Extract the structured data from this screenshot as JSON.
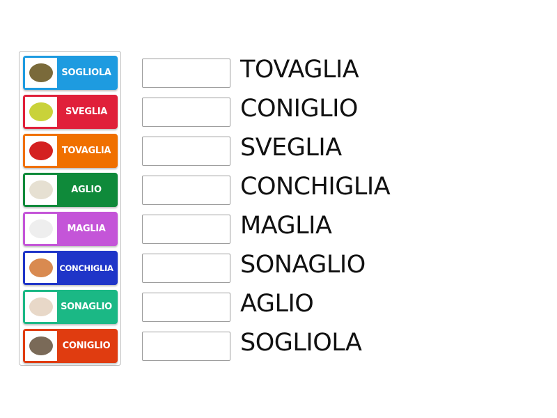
{
  "tiles": [
    {
      "label": "SOGLIOLA",
      "color": "#1e9be0",
      "image": "flatfish-image",
      "pic": "#7a6a3a"
    },
    {
      "label": "SVEGLIA",
      "color": "#e0203a",
      "image": "alarm-clock-book-image",
      "pic": "#c9d23a"
    },
    {
      "label": "TOVAGLIA",
      "color": "#f07000",
      "image": "tablecloth-image",
      "pic": "#d42020"
    },
    {
      "label": "AGLIO",
      "color": "#0f8a3a",
      "image": "garlic-image",
      "pic": "#e6e0d2"
    },
    {
      "label": "MAGLIA",
      "color": "#c455d8",
      "image": "tshirt-image",
      "pic": "#eeeeee"
    },
    {
      "label": "CONCHIGLIA",
      "color": "#1f35c8",
      "image": "seashell-image",
      "pic": "#d98a50"
    },
    {
      "label": "SONAGLIO",
      "color": "#1bb885",
      "image": "baby-rattle-image",
      "pic": "#e8d8c8"
    },
    {
      "label": "CONIGLIO",
      "color": "#e03c10",
      "image": "rabbit-image",
      "pic": "#7a6a58"
    }
  ],
  "targets": [
    "TOVAGLIA",
    "CONIGLIO",
    "SVEGLIA",
    "CONCHIGLIA",
    "MAGLIA",
    "SONAGLIO",
    "AGLIO",
    "SOGLIOLA"
  ]
}
